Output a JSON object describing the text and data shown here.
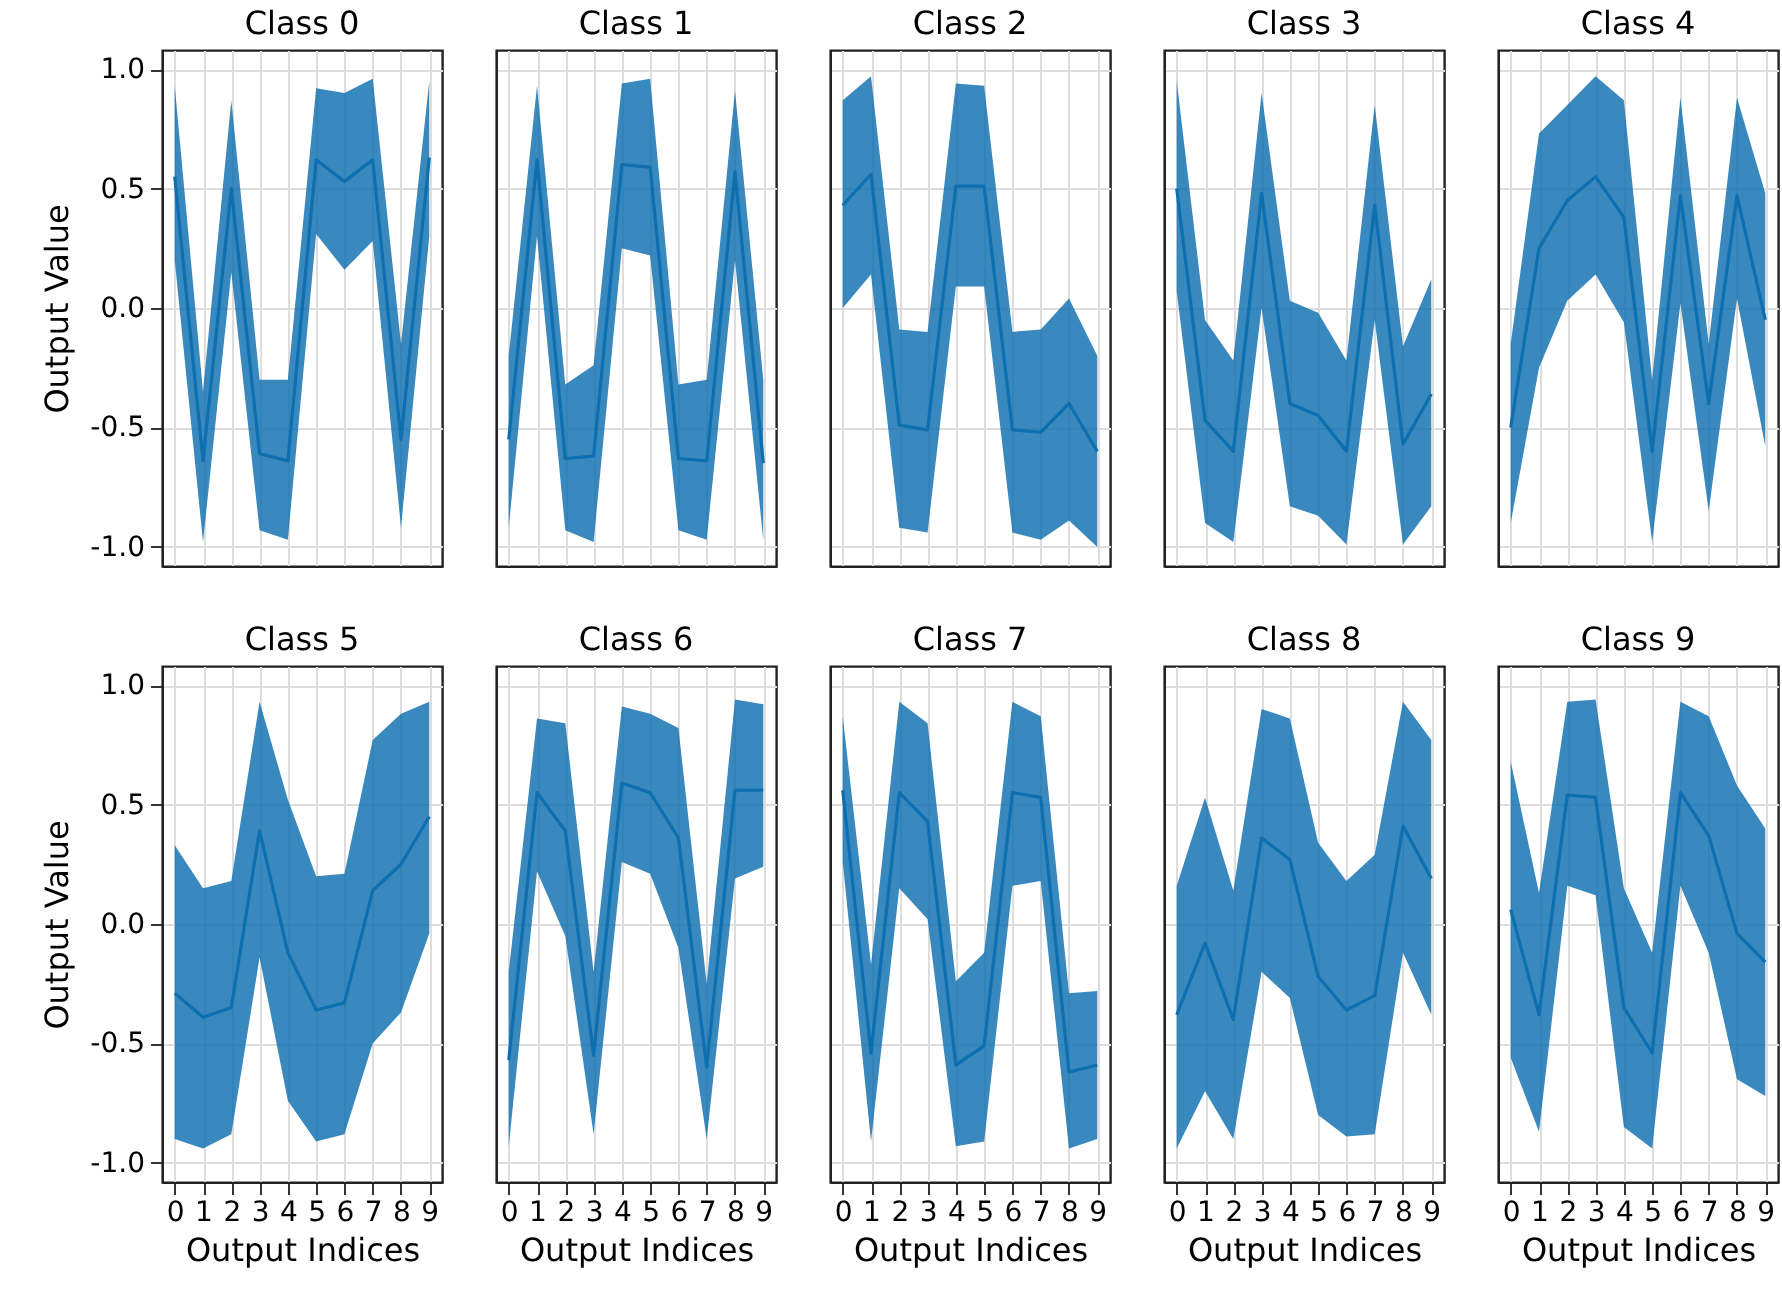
{
  "chart_data": [
    {
      "type": "line",
      "title": "Class 0",
      "ylabel": "Output Value",
      "x": [
        0,
        1,
        2,
        3,
        4,
        5,
        6,
        7,
        8,
        9
      ],
      "xlim": [
        -0.45,
        9.45
      ],
      "xticks": [
        0,
        1,
        2,
        3,
        4,
        5,
        6,
        7,
        8,
        9
      ],
      "ylim": [
        -1.08,
        1.08
      ],
      "yticks": [
        {
          "value": -1,
          "label": "-1.0"
        },
        {
          "value": -0.5,
          "label": "-0.5"
        },
        {
          "value": 0,
          "label": "0.0"
        },
        {
          "value": 0.5,
          "label": "0.5"
        },
        {
          "value": 1,
          "label": "1.0"
        }
      ],
      "grid": true,
      "tick_labels": "y",
      "series": [
        {
          "color": "#0d6fb0",
          "values": [
            0.55,
            -0.64,
            0.5,
            -0.61,
            -0.64,
            0.62,
            0.53,
            0.62,
            -0.55,
            0.63
          ],
          "lower": [
            0.2,
            -0.98,
            0.15,
            -0.93,
            -0.97,
            0.31,
            0.16,
            0.28,
            -0.92,
            0.3
          ],
          "upper": [
            0.93,
            -0.35,
            0.87,
            -0.3,
            -0.3,
            0.92,
            0.9,
            0.96,
            -0.15,
            0.95
          ]
        }
      ]
    },
    {
      "type": "line",
      "title": "Class 1",
      "x": [
        0,
        1,
        2,
        3,
        4,
        5,
        6,
        7,
        8,
        9
      ],
      "xlim": [
        -0.45,
        9.45
      ],
      "xticks": [
        0,
        1,
        2,
        3,
        4,
        5,
        6,
        7,
        8,
        9
      ],
      "ylim": [
        -1.08,
        1.08
      ],
      "yticks": [
        -1,
        -0.5,
        0,
        0.5,
        1
      ],
      "grid": true,
      "tick_labels": false,
      "series": [
        {
          "color": "#0d6fb0",
          "values": [
            -0.55,
            0.62,
            -0.63,
            -0.62,
            0.6,
            0.59,
            -0.63,
            -0.64,
            0.57,
            -0.65
          ],
          "lower": [
            -0.92,
            0.3,
            -0.93,
            -0.98,
            0.25,
            0.22,
            -0.93,
            -0.97,
            0.2,
            -0.97
          ],
          "upper": [
            -0.2,
            0.93,
            -0.32,
            -0.24,
            0.94,
            0.96,
            -0.32,
            -0.3,
            0.91,
            -0.3
          ]
        }
      ]
    },
    {
      "type": "line",
      "title": "Class 2",
      "x": [
        0,
        1,
        2,
        3,
        4,
        5,
        6,
        7,
        8,
        9
      ],
      "xlim": [
        -0.45,
        9.45
      ],
      "xticks": [
        0,
        1,
        2,
        3,
        4,
        5,
        6,
        7,
        8,
        9
      ],
      "ylim": [
        -1.08,
        1.08
      ],
      "yticks": [
        -1,
        -0.5,
        0,
        0.5,
        1
      ],
      "grid": true,
      "tick_labels": false,
      "series": [
        {
          "color": "#0d6fb0",
          "values": [
            0.43,
            0.56,
            -0.49,
            -0.51,
            0.51,
            0.51,
            -0.51,
            -0.52,
            -0.4,
            -0.6
          ],
          "lower": [
            0.0,
            0.14,
            -0.92,
            -0.94,
            0.09,
            0.09,
            -0.94,
            -0.97,
            -0.89,
            -1.0
          ],
          "upper": [
            0.87,
            0.97,
            -0.09,
            -0.1,
            0.94,
            0.93,
            -0.1,
            -0.09,
            0.04,
            -0.2
          ]
        }
      ]
    },
    {
      "type": "line",
      "title": "Class 3",
      "x": [
        0,
        1,
        2,
        3,
        4,
        5,
        6,
        7,
        8,
        9
      ],
      "xlim": [
        -0.45,
        9.45
      ],
      "xticks": [
        0,
        1,
        2,
        3,
        4,
        5,
        6,
        7,
        8,
        9
      ],
      "ylim": [
        -1.08,
        1.08
      ],
      "yticks": [
        -1,
        -0.5,
        0,
        0.5,
        1
      ],
      "grid": true,
      "tick_labels": false,
      "series": [
        {
          "color": "#0d6fb0",
          "values": [
            0.5,
            -0.47,
            -0.6,
            0.48,
            -0.4,
            -0.45,
            -0.6,
            0.43,
            -0.57,
            -0.36
          ],
          "lower": [
            0.07,
            -0.9,
            -0.98,
            0.0,
            -0.83,
            -0.87,
            -0.99,
            -0.05,
            -0.99,
            -0.83
          ],
          "upper": [
            0.95,
            -0.05,
            -0.22,
            0.9,
            0.03,
            -0.02,
            -0.22,
            0.85,
            -0.16,
            0.12
          ]
        }
      ]
    },
    {
      "type": "line",
      "title": "Class 4",
      "x": [
        0,
        1,
        2,
        3,
        4,
        5,
        6,
        7,
        8,
        9
      ],
      "xlim": [
        -0.45,
        9.45
      ],
      "xticks": [
        0,
        1,
        2,
        3,
        4,
        5,
        6,
        7,
        8,
        9
      ],
      "ylim": [
        -1.08,
        1.08
      ],
      "yticks": [
        -1,
        -0.5,
        0,
        0.5,
        1
      ],
      "grid": true,
      "tick_labels": false,
      "series": [
        {
          "color": "#0d6fb0",
          "values": [
            -0.5,
            0.25,
            0.45,
            0.55,
            0.38,
            -0.6,
            0.47,
            -0.4,
            0.47,
            -0.05
          ],
          "lower": [
            -0.9,
            -0.25,
            0.03,
            0.14,
            -0.06,
            -0.98,
            0.02,
            -0.85,
            0.04,
            -0.58
          ],
          "upper": [
            -0.15,
            0.73,
            0.85,
            0.97,
            0.87,
            -0.3,
            0.88,
            -0.15,
            0.88,
            0.48
          ]
        }
      ]
    },
    {
      "type": "line",
      "title": "Class 5",
      "xlabel": "Output Indices",
      "ylabel": "Output Value",
      "x": [
        0,
        1,
        2,
        3,
        4,
        5,
        6,
        7,
        8,
        9
      ],
      "xlim": [
        -0.45,
        9.45
      ],
      "xticks": [
        0,
        1,
        2,
        3,
        4,
        5,
        6,
        7,
        8,
        9
      ],
      "ylim": [
        -1.08,
        1.08
      ],
      "yticks": [
        {
          "value": -1,
          "label": "-1.0"
        },
        {
          "value": -0.5,
          "label": "-0.5"
        },
        {
          "value": 0,
          "label": "0.0"
        },
        {
          "value": 0.5,
          "label": "0.5"
        },
        {
          "value": 1,
          "label": "1.0"
        }
      ],
      "grid": true,
      "series": [
        {
          "color": "#0d6fb0",
          "values": [
            -0.29,
            -0.39,
            -0.35,
            0.39,
            -0.12,
            -0.36,
            -0.33,
            0.14,
            0.25,
            0.45
          ],
          "lower": [
            -0.9,
            -0.94,
            -0.88,
            -0.14,
            -0.74,
            -0.91,
            -0.88,
            -0.5,
            -0.37,
            -0.04
          ],
          "upper": [
            0.33,
            0.15,
            0.18,
            0.93,
            0.52,
            0.2,
            0.21,
            0.77,
            0.88,
            0.93
          ]
        }
      ]
    },
    {
      "type": "line",
      "title": "Class 6",
      "xlabel": "Output Indices",
      "x": [
        0,
        1,
        2,
        3,
        4,
        5,
        6,
        7,
        8,
        9
      ],
      "xlim": [
        -0.45,
        9.45
      ],
      "xticks": [
        0,
        1,
        2,
        3,
        4,
        5,
        6,
        7,
        8,
        9
      ],
      "ylim": [
        -1.08,
        1.08
      ],
      "yticks": [
        -1,
        -0.5,
        0,
        0.5,
        1
      ],
      "grid": true,
      "tick_labels": "x",
      "series": [
        {
          "color": "#0d6fb0",
          "values": [
            -0.57,
            0.55,
            0.39,
            -0.55,
            0.59,
            0.55,
            0.36,
            -0.6,
            0.56,
            0.56
          ],
          "lower": [
            -0.93,
            0.22,
            -0.05,
            -0.88,
            0.26,
            0.21,
            -0.1,
            -0.9,
            0.19,
            0.24
          ],
          "upper": [
            -0.2,
            0.86,
            0.84,
            -0.2,
            0.91,
            0.88,
            0.82,
            -0.25,
            0.94,
            0.92
          ]
        }
      ]
    },
    {
      "type": "line",
      "title": "Class 7",
      "xlabel": "Output Indices",
      "x": [
        0,
        1,
        2,
        3,
        4,
        5,
        6,
        7,
        8,
        9
      ],
      "xlim": [
        -0.45,
        9.45
      ],
      "xticks": [
        0,
        1,
        2,
        3,
        4,
        5,
        6,
        7,
        8,
        9
      ],
      "ylim": [
        -1.08,
        1.08
      ],
      "yticks": [
        -1,
        -0.5,
        0,
        0.5,
        1
      ],
      "grid": true,
      "tick_labels": "x",
      "series": [
        {
          "color": "#0d6fb0",
          "values": [
            0.56,
            -0.54,
            0.55,
            0.43,
            -0.59,
            -0.51,
            0.55,
            0.53,
            -0.62,
            -0.59
          ],
          "lower": [
            0.26,
            -0.91,
            0.15,
            0.02,
            -0.93,
            -0.91,
            0.16,
            0.18,
            -0.94,
            -0.9
          ],
          "upper": [
            0.87,
            -0.17,
            0.93,
            0.84,
            -0.24,
            -0.12,
            0.93,
            0.87,
            -0.29,
            -0.28
          ]
        }
      ]
    },
    {
      "type": "line",
      "title": "Class 8",
      "xlabel": "Output Indices",
      "x": [
        0,
        1,
        2,
        3,
        4,
        5,
        6,
        7,
        8,
        9
      ],
      "xlim": [
        -0.45,
        9.45
      ],
      "xticks": [
        0,
        1,
        2,
        3,
        4,
        5,
        6,
        7,
        8,
        9
      ],
      "ylim": [
        -1.08,
        1.08
      ],
      "yticks": [
        -1,
        -0.5,
        0,
        0.5,
        1
      ],
      "grid": true,
      "tick_labels": "x",
      "series": [
        {
          "color": "#0d6fb0",
          "values": [
            -0.38,
            -0.08,
            -0.4,
            0.36,
            0.27,
            -0.22,
            -0.36,
            -0.3,
            0.41,
            0.19
          ],
          "lower": [
            -0.94,
            -0.7,
            -0.9,
            -0.2,
            -0.31,
            -0.8,
            -0.89,
            -0.88,
            -0.12,
            -0.38
          ],
          "upper": [
            0.16,
            0.53,
            0.14,
            0.9,
            0.86,
            0.34,
            0.18,
            0.29,
            0.93,
            0.77
          ]
        }
      ]
    },
    {
      "type": "line",
      "title": "Class 9",
      "xlabel": "Output Indices",
      "x": [
        0,
        1,
        2,
        3,
        4,
        5,
        6,
        7,
        8,
        9
      ],
      "xlim": [
        -0.45,
        9.45
      ],
      "xticks": [
        0,
        1,
        2,
        3,
        4,
        5,
        6,
        7,
        8,
        9
      ],
      "ylim": [
        -1.08,
        1.08
      ],
      "yticks": [
        -1,
        -0.5,
        0,
        0.5,
        1
      ],
      "grid": true,
      "tick_labels": "x",
      "series": [
        {
          "color": "#0d6fb0",
          "values": [
            0.06,
            -0.38,
            0.54,
            0.53,
            -0.35,
            -0.54,
            0.55,
            0.37,
            -0.04,
            -0.16
          ],
          "lower": [
            -0.56,
            -0.87,
            0.16,
            0.12,
            -0.85,
            -0.94,
            0.16,
            -0.12,
            -0.65,
            -0.72
          ],
          "upper": [
            0.68,
            0.13,
            0.93,
            0.94,
            0.15,
            -0.12,
            0.93,
            0.87,
            0.58,
            0.4
          ]
        }
      ]
    }
  ]
}
